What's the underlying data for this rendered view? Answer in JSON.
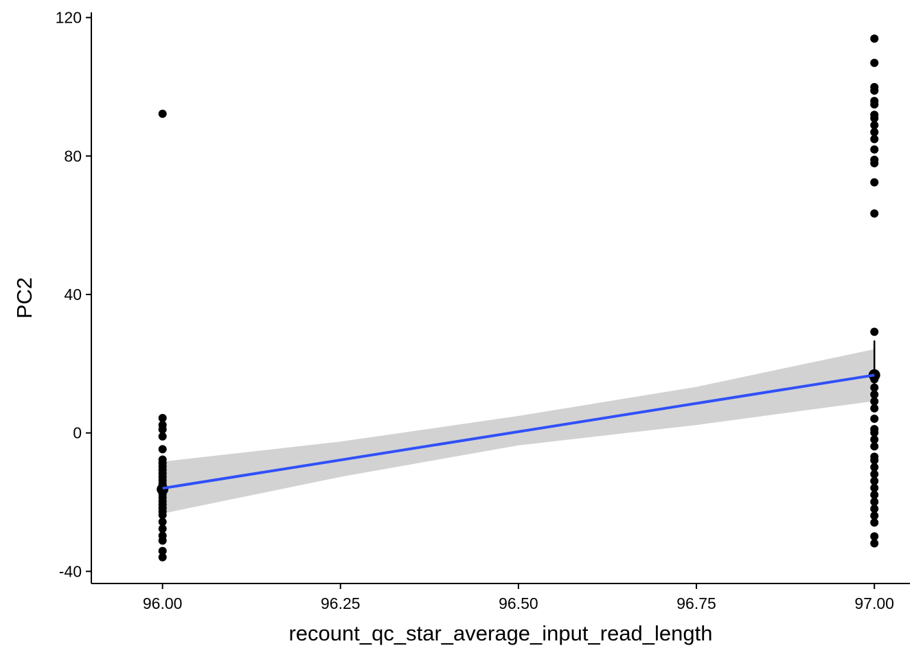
{
  "chart_data": {
    "type": "scatter",
    "title": "",
    "xlabel": "recount_qc_star_average_input_read_length",
    "ylabel": "PC2",
    "xlim": [
      95.9,
      97.05
    ],
    "ylim": [
      -43.5,
      121.5
    ],
    "x_ticks": [
      96.0,
      96.25,
      96.5,
      96.75,
      97.0
    ],
    "x_tick_labels": [
      "96.00",
      "96.25",
      "96.50",
      "96.75",
      "97.00"
    ],
    "y_ticks": [
      -40,
      0,
      40,
      80,
      120
    ],
    "y_tick_labels": [
      "-40",
      "0",
      "40",
      "80",
      "120"
    ],
    "grid": false,
    "legend": "none",
    "point_color": "#000000",
    "series": [
      {
        "x": 96.0,
        "y": [
          92.2,
          4.3,
          2.3,
          1.0,
          -1.0,
          -4.7,
          -7.7,
          -8.7,
          -9.7,
          -10.7,
          -11.7,
          -12.7,
          -13.7,
          -14.7,
          -15.7,
          -16.7,
          -17.7,
          -18.7,
          -19.7,
          -20.7,
          -21.7,
          -22.7,
          -23.7,
          -25.7,
          -27.7,
          -29.7,
          -31.1,
          -34.1,
          -35.9
        ]
      },
      {
        "x": 97.0,
        "y": [
          113.9,
          106.9,
          99.9,
          98.9,
          95.9,
          94.9,
          91.9,
          90.9,
          88.9,
          86.9,
          84.9,
          81.9,
          78.9,
          77.9,
          72.4,
          63.4,
          29.2,
          16.5,
          15.5,
          13.1,
          11.1,
          9.1,
          7.1,
          4.1,
          1.1,
          0.1,
          -1.9,
          -3.9,
          -6.9,
          -7.9,
          -9.9,
          -11.9,
          -13.9,
          -15.9,
          -17.9,
          -19.9,
          -21.9,
          -23.9,
          -25.9,
          -29.9,
          -31.9
        ]
      }
    ],
    "summary_points": [
      {
        "x": 96.0,
        "y": -16.3,
        "error_low": -23.3,
        "error_high": -8.3
      },
      {
        "x": 97.0,
        "y": 16.7,
        "error_low": 9.7,
        "error_high": 26.7
      }
    ],
    "regression": {
      "color": "#3050f8",
      "band_color": "#d2d2d2",
      "x": [
        96.0,
        97.0
      ],
      "y": [
        -16.0,
        16.7
      ],
      "band": [
        {
          "x": 96.0,
          "lower": -23.3,
          "upper": -8.3
        },
        {
          "x": 96.25,
          "lower": -12.7,
          "upper": -2.5
        },
        {
          "x": 96.5,
          "lower": -3.6,
          "upper": 4.9
        },
        {
          "x": 96.75,
          "lower": 2.3,
          "upper": 13.3
        },
        {
          "x": 97.0,
          "lower": 9.2,
          "upper": 24.2
        }
      ]
    }
  }
}
